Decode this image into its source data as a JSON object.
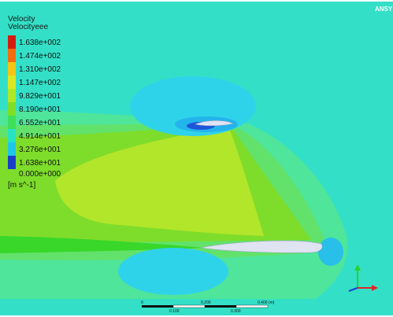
{
  "brand": "ANSY",
  "legend": {
    "title": "Velocity",
    "subtitle": "Velocityeee",
    "units": "[m s^-1]",
    "ticks": [
      "1.638e+002",
      "1.474e+002",
      "1.310e+002",
      "1.147e+002",
      "9.829e+001",
      "8.190e+001",
      "6.552e+001",
      "4.914e+001",
      "3.276e+001",
      "1.638e+001",
      "0.000e+000"
    ],
    "colors": [
      "#d21e12",
      "#f06e10",
      "#f3c514",
      "#dbe722",
      "#aee928",
      "#7edf2a",
      "#3ee05a",
      "#27e3c0",
      "#20c6e8",
      "#1a87e6",
      "#1a3fc7"
    ]
  },
  "scale_bar": {
    "labels_top": [
      "0",
      "0.200",
      "0.400 (m)"
    ],
    "labels_bottom": [
      "0.100",
      "0.300"
    ]
  },
  "colors": {
    "background_field": "#33e0c7",
    "airfoil": "#dfe3f2",
    "axis_y": "#2ad12a",
    "axis_x": "#e02626",
    "axis_z": "#1e3bd6"
  }
}
